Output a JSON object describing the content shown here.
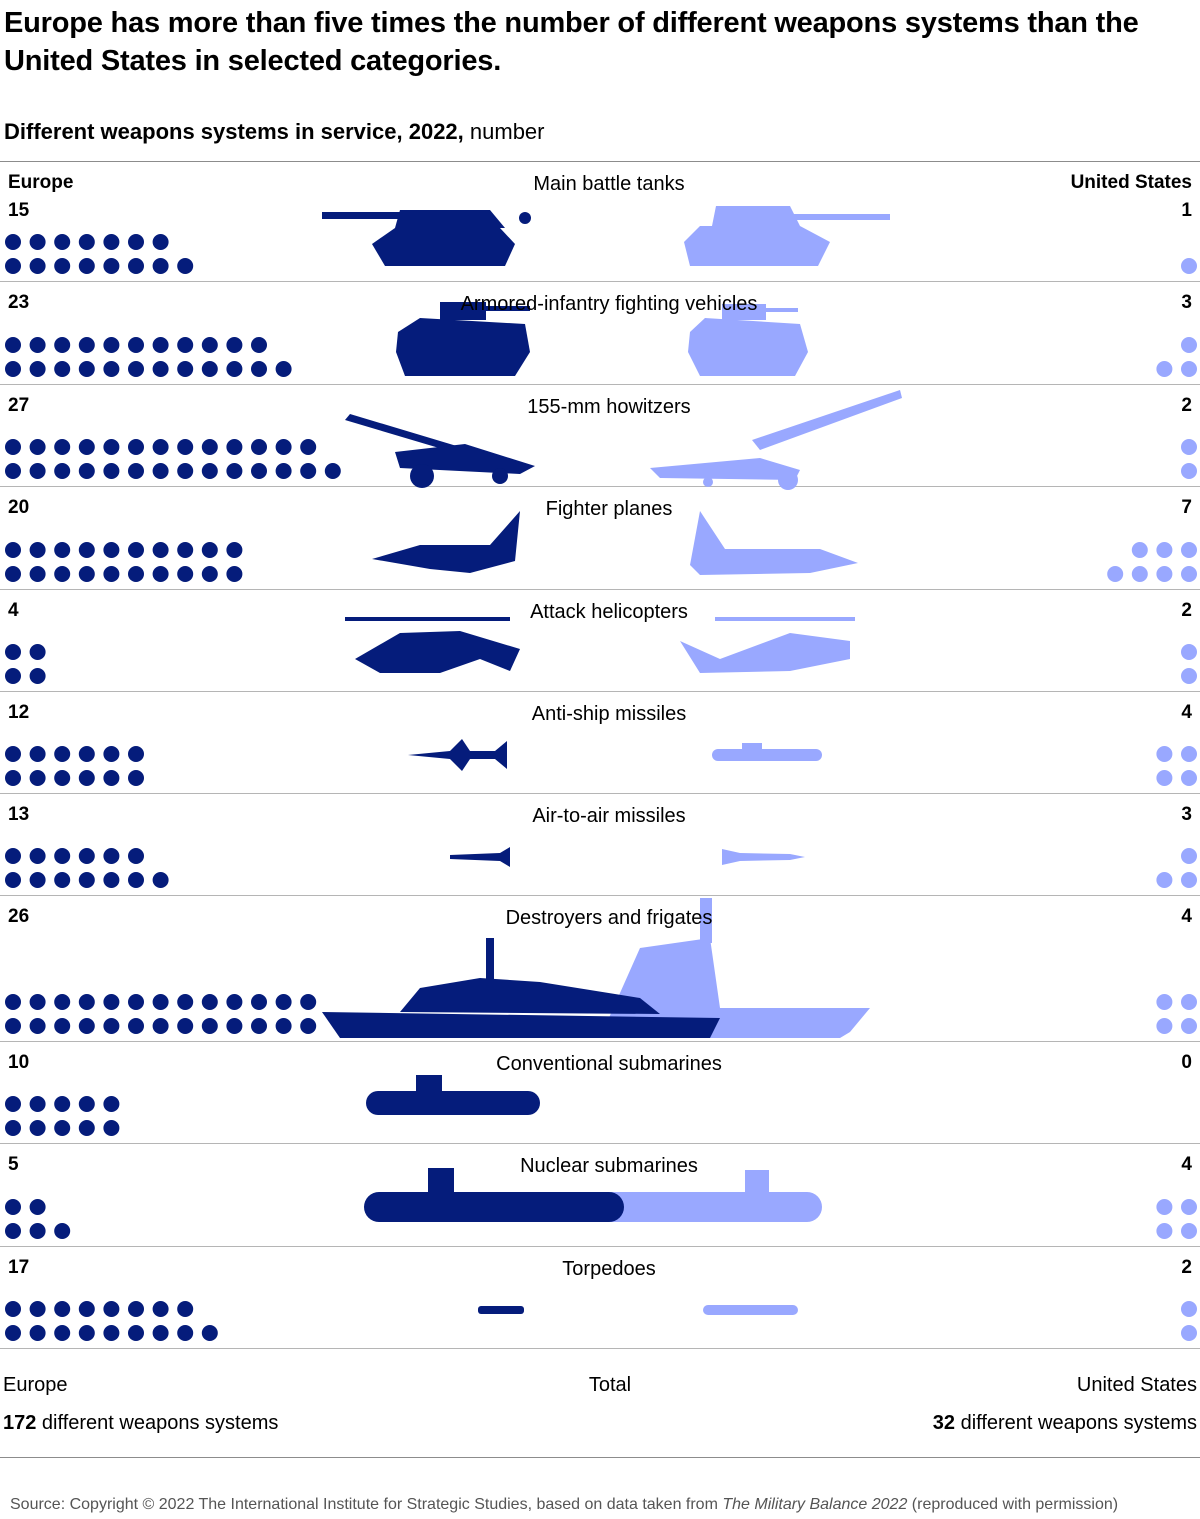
{
  "title": "Europe has more than five times the number of different weapons systems than the United States in selected categories.",
  "subtitle": {
    "bold": "Different weapons systems in service, 2022,",
    "unit": " number"
  },
  "headers": {
    "europe": "Europe",
    "us": "United States"
  },
  "colors": {
    "europe": "#051c7b",
    "us": "#99a8ff"
  },
  "chart_data": {
    "type": "dot matrix",
    "series": [
      {
        "name": "Europe",
        "color": "#051c7b"
      },
      {
        "name": "United States",
        "color": "#99a8ff"
      }
    ],
    "categories": [
      {
        "label": "Main battle tanks",
        "europe": 15,
        "us": 1,
        "icon": "tank-icon"
      },
      {
        "label": "Armored-infantry fighting vehicles",
        "europe": 23,
        "us": 3,
        "icon": "infantry-vehicle-icon"
      },
      {
        "label": "155-mm howitzers",
        "europe": 27,
        "us": 2,
        "icon": "howitzer-icon"
      },
      {
        "label": "Fighter planes",
        "europe": 20,
        "us": 7,
        "icon": "fighter-plane-icon"
      },
      {
        "label": "Attack helicopters",
        "europe": 4,
        "us": 2,
        "icon": "helicopter-icon"
      },
      {
        "label": "Anti-ship missiles",
        "europe": 12,
        "us": 4,
        "icon": "anti-ship-missile-icon"
      },
      {
        "label": "Air-to-air missiles",
        "europe": 13,
        "us": 3,
        "icon": "air-to-air-missile-icon"
      },
      {
        "label": "Destroyers and frigates",
        "europe": 26,
        "us": 4,
        "icon": "warship-icon"
      },
      {
        "label": "Conventional submarines",
        "europe": 10,
        "us": 0,
        "icon": "conventional-submarine-icon"
      },
      {
        "label": "Nuclear submarines",
        "europe": 5,
        "us": 4,
        "icon": "nuclear-submarine-icon"
      },
      {
        "label": "Torpedoes",
        "europe": 17,
        "us": 2,
        "icon": "torpedo-icon"
      }
    ]
  },
  "totals": {
    "europe_label": "Europe",
    "middle_label": "Total",
    "us_label": "United States",
    "europe_value": "172",
    "europe_suffix": " different weapons systems",
    "us_value": "32",
    "us_suffix": " different weapons systems"
  },
  "source": {
    "prefix": "Source: Copyright © 2022 The International Institute for Strategic Studies, based on data taken from ",
    "italic": "The Military Balance 2022",
    "suffix": " (reproduced with permission)"
  }
}
